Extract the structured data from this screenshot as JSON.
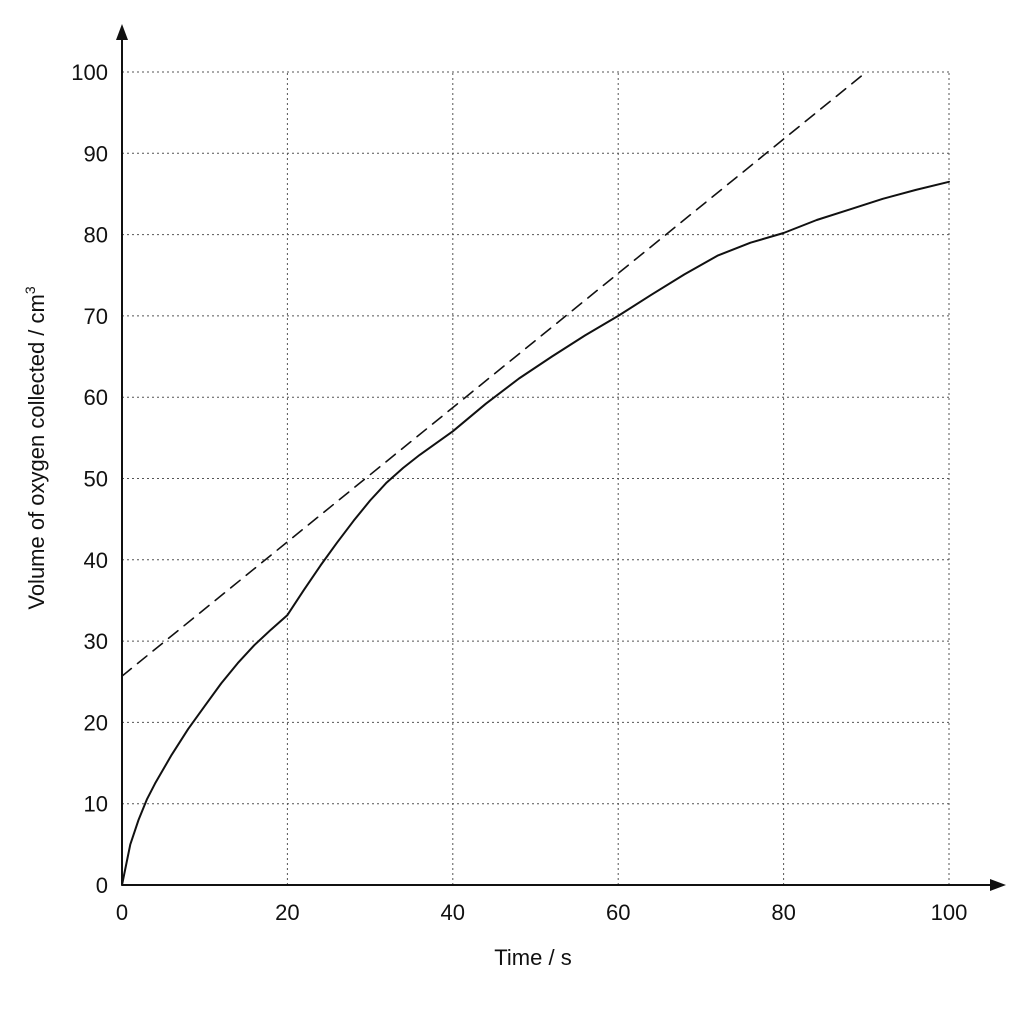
{
  "chart_data": {
    "type": "line",
    "title": "",
    "xlabel": "Time / s",
    "ylabel_main": "Volume of oxygen collected / cm",
    "ylabel_sup": "3",
    "xlim": [
      0,
      100
    ],
    "ylim": [
      0,
      100
    ],
    "x_ticks": [
      0,
      20,
      40,
      60,
      80,
      100
    ],
    "y_ticks": [
      0,
      10,
      20,
      30,
      40,
      50,
      60,
      70,
      80,
      90,
      100
    ],
    "grid": true,
    "grid_style": "dotted",
    "series": [
      {
        "style": "solid",
        "x": [
          0,
          1,
          2,
          3,
          4,
          6,
          8,
          10,
          12,
          14,
          16,
          18,
          20,
          22,
          24,
          26,
          28,
          30,
          32,
          34,
          36,
          40,
          44,
          48,
          52,
          56,
          60,
          64,
          68,
          72,
          76,
          80,
          84,
          88,
          92,
          96,
          100
        ],
        "y": [
          0,
          5,
          8,
          10.5,
          12.5,
          16,
          19.2,
          22,
          24.8,
          27.3,
          29.5,
          31.4,
          33.2,
          36.3,
          39.3,
          42.1,
          44.8,
          47.3,
          49.5,
          51.3,
          52.9,
          55.8,
          59.2,
          62.3,
          65,
          67.6,
          70,
          72.6,
          75.1,
          77.4,
          79,
          80.2,
          81.8,
          83.1,
          84.4,
          85.5,
          86.5
        ]
      },
      {
        "style": "dashed",
        "x": [
          0,
          90
        ],
        "y": [
          25.7,
          100
        ]
      }
    ]
  }
}
